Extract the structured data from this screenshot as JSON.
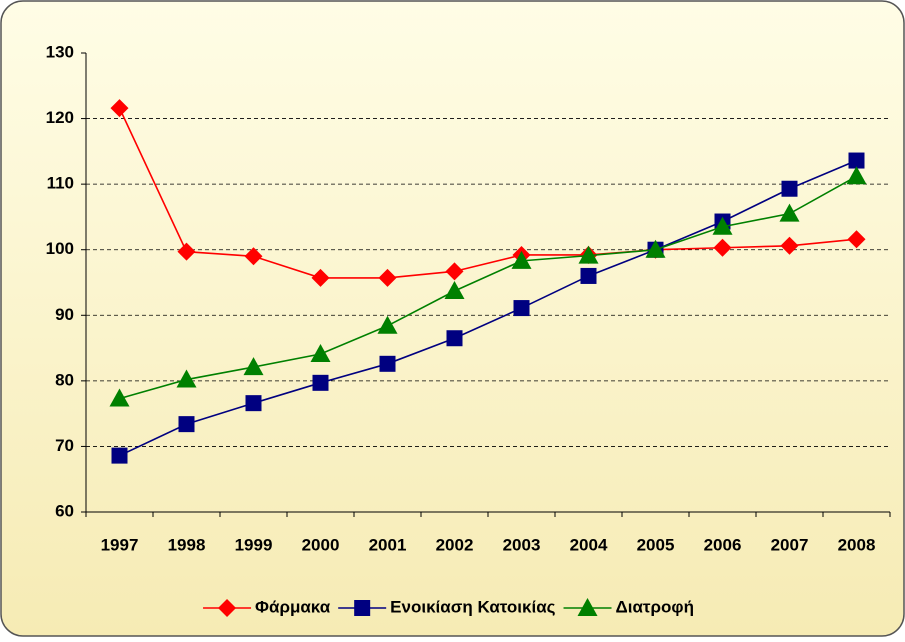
{
  "chart_data": {
    "type": "line",
    "categories": [
      "1997",
      "1998",
      "1999",
      "2000",
      "2001",
      "2002",
      "2003",
      "2004",
      "2005",
      "2006",
      "2007",
      "2008"
    ],
    "series": [
      {
        "name": "Φάρμακα",
        "color": "#ff0000",
        "marker": "diamond",
        "values": [
          121.6,
          99.7,
          99.0,
          95.7,
          95.7,
          96.7,
          99.2,
          99.2,
          100,
          100.3,
          100.6,
          101.6
        ]
      },
      {
        "name": "Ενοικίαση Κατοικίας",
        "color": "#000080",
        "marker": "square",
        "values": [
          68.6,
          73.4,
          76.6,
          79.7,
          82.6,
          86.5,
          91.1,
          96,
          100,
          104.3,
          109.3,
          113.6
        ]
      },
      {
        "name": "Διατροφή",
        "color": "#008000",
        "marker": "triangle",
        "values": [
          77.3,
          80.2,
          82.1,
          84.1,
          88.4,
          93.7,
          98.3,
          99.1,
          100,
          103.5,
          105.5,
          111.2
        ]
      }
    ],
    "ylim": [
      60,
      130
    ],
    "yticks": [
      60,
      70,
      80,
      90,
      100,
      110,
      120,
      130
    ],
    "grid": true,
    "legend": "bottom"
  }
}
